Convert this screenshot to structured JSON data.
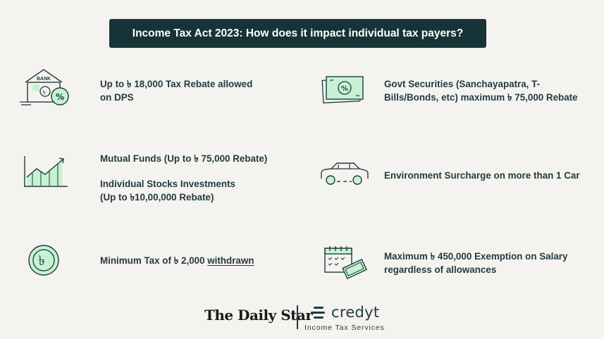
{
  "title": "Income Tax Act 2023: How does it impact individual tax payers?",
  "items": {
    "dps": {
      "icon_text": "BANK",
      "line1": "Up to ৳ 18,000 Tax Rebate allowed",
      "line2": "on DPS"
    },
    "govt": {
      "line1": "Govt Securities (Sanchayapatra, T-",
      "line2": "Bills/Bonds, etc) maximum ৳ 75,000 Rebate"
    },
    "mutual": {
      "text": "Mutual Funds (Up to ৳ 75,000 Rebate)"
    },
    "stocks": {
      "line1": "Individual Stocks Investments",
      "line2": "(Up to ৳10,00,000 Rebate)"
    },
    "car": {
      "text": "Environment Surcharge on more than 1 Car"
    },
    "mintax": {
      "prefix": "Minimum Tax of ৳ 2,000 ",
      "underlined": "withdrawn"
    },
    "salary": {
      "line1": "Maximum ৳ 450,000 Exemption on Salary",
      "line2": "regardless of allowances"
    }
  },
  "footer": {
    "daily_star": "The Daily Star",
    "credyt": "credyt",
    "credyt_sub": "Income Tax Services"
  },
  "colors": {
    "title_bg": "#163338",
    "text": "#1f3a40",
    "accent": "#c6f2d2",
    "background": "#f5f3ef"
  }
}
